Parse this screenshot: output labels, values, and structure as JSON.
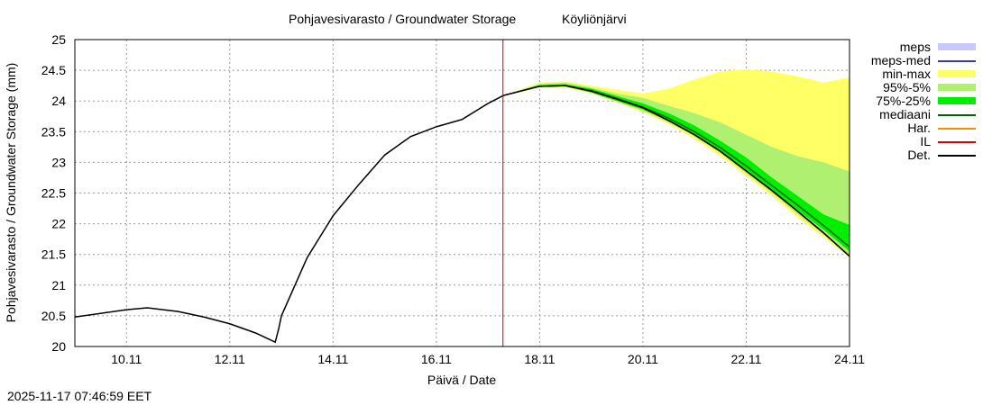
{
  "chart_data": {
    "type": "band-line",
    "title": "Pohjavesivarasto / Groundwater Storage",
    "station": "Köyliönjärvi",
    "ylabel": "Pohjavesivarasto / Groundwater Storage (mm)",
    "xlabel": "Päivä / Date",
    "timestamp": "2025-11-17 07:46:59 EET",
    "xlim": [
      9,
      24
    ],
    "ylim": [
      20,
      25
    ],
    "xticks": [
      {
        "value": 10,
        "label": "10.11"
      },
      {
        "value": 12,
        "label": "12.11"
      },
      {
        "value": 14,
        "label": "14.11"
      },
      {
        "value": 16,
        "label": "16.11"
      },
      {
        "value": 18,
        "label": "18.11"
      },
      {
        "value": 20,
        "label": "20.11"
      },
      {
        "value": 22,
        "label": "22.11"
      },
      {
        "value": 24,
        "label": "24.11"
      }
    ],
    "yticks": [
      20,
      20.5,
      21,
      21.5,
      22,
      22.5,
      23,
      23.5,
      24,
      24.5,
      25
    ],
    "grid": true,
    "forecast_start": 17.29,
    "forecast_line_color": "#cc0000",
    "series": [
      {
        "name": "meps",
        "kind": "band",
        "color": "#c8c8ff",
        "x": [],
        "low": [],
        "high": []
      },
      {
        "name": "meps-med",
        "kind": "line",
        "color": "#3c3caa",
        "x": [],
        "values": []
      },
      {
        "name": "min-max",
        "kind": "band",
        "color": "#ffff66",
        "x": [
          17.3,
          18,
          18.5,
          19,
          19.5,
          20,
          20.5,
          21,
          21.5,
          22,
          22.5,
          23,
          23.5,
          24
        ],
        "low": [
          24.09,
          24.22,
          24.22,
          24.12,
          23.98,
          23.82,
          23.62,
          23.38,
          23.1,
          22.78,
          22.45,
          22.1,
          21.78,
          21.45
        ],
        "high": [
          24.09,
          24.3,
          24.32,
          24.25,
          24.18,
          24.12,
          24.2,
          24.35,
          24.48,
          24.52,
          24.48,
          24.4,
          24.3,
          24.38
        ]
      },
      {
        "name": "95%-5%",
        "kind": "band",
        "color": "#b0f070",
        "x": [
          17.3,
          18,
          18.5,
          19,
          19.5,
          20,
          20.5,
          21,
          21.5,
          22,
          22.5,
          23,
          23.5,
          24
        ],
        "low": [
          24.09,
          24.22,
          24.23,
          24.13,
          23.99,
          23.84,
          23.65,
          23.42,
          23.15,
          22.82,
          22.5,
          22.15,
          21.82,
          21.48
        ],
        "high": [
          24.09,
          24.28,
          24.3,
          24.22,
          24.12,
          24.05,
          23.92,
          23.8,
          23.65,
          23.45,
          23.25,
          23.1,
          23.0,
          22.85
        ]
      },
      {
        "name": "75%-25%",
        "kind": "band",
        "color": "#00ee00",
        "x": [
          17.3,
          18,
          18.5,
          19,
          19.5,
          20,
          20.5,
          21,
          21.5,
          22,
          22.5,
          23,
          23.5,
          24
        ],
        "low": [
          24.09,
          24.23,
          24.24,
          24.14,
          24.0,
          23.86,
          23.68,
          23.45,
          23.18,
          22.88,
          22.55,
          22.22,
          21.9,
          21.55
        ],
        "high": [
          24.09,
          24.26,
          24.27,
          24.2,
          24.08,
          23.96,
          23.8,
          23.6,
          23.35,
          23.08,
          22.75,
          22.45,
          22.15,
          21.98
        ]
      },
      {
        "name": "mediaani",
        "kind": "line",
        "color": "#006400",
        "x": [
          17.3,
          18,
          18.5,
          19,
          19.5,
          20,
          20.5,
          21,
          21.5,
          22,
          22.5,
          23,
          23.5,
          24
        ],
        "values": [
          24.09,
          24.24,
          24.25,
          24.17,
          24.04,
          23.9,
          23.72,
          23.5,
          23.24,
          22.94,
          22.62,
          22.3,
          21.97,
          21.62
        ]
      },
      {
        "name": "Har.",
        "kind": "line",
        "color": "#ff8c00",
        "x": [],
        "values": []
      },
      {
        "name": "IL",
        "kind": "line",
        "color": "#dd0000",
        "x": [
          17.3,
          18,
          18.5,
          19,
          19.5,
          20,
          20.5,
          21,
          21.5,
          22,
          22.5,
          23,
          23.5,
          24
        ],
        "values": [
          24.09,
          24.24,
          24.25,
          24.16,
          24.03,
          23.89,
          23.68,
          23.45,
          23.18,
          22.86,
          22.54,
          22.2,
          21.85,
          21.47
        ]
      },
      {
        "name": "Det.",
        "kind": "line",
        "color": "#000000",
        "x": [
          9,
          10,
          10.4,
          11,
          11.5,
          12,
          12.5,
          12.88,
          12.95,
          13,
          13.5,
          14,
          14.5,
          15,
          15.5,
          16,
          16.5,
          17,
          17.3,
          18,
          18.5,
          19,
          19.5,
          20,
          20.5,
          21,
          21.5,
          22,
          22.5,
          23,
          23.5,
          24
        ],
        "values": [
          20.48,
          20.6,
          20.63,
          20.57,
          20.48,
          20.37,
          20.22,
          20.07,
          20.3,
          20.5,
          21.45,
          22.13,
          22.64,
          23.12,
          23.42,
          23.58,
          23.7,
          23.96,
          24.09,
          24.24,
          24.25,
          24.16,
          24.03,
          23.89,
          23.68,
          23.45,
          23.18,
          22.86,
          22.54,
          22.2,
          21.85,
          21.47
        ]
      }
    ]
  }
}
